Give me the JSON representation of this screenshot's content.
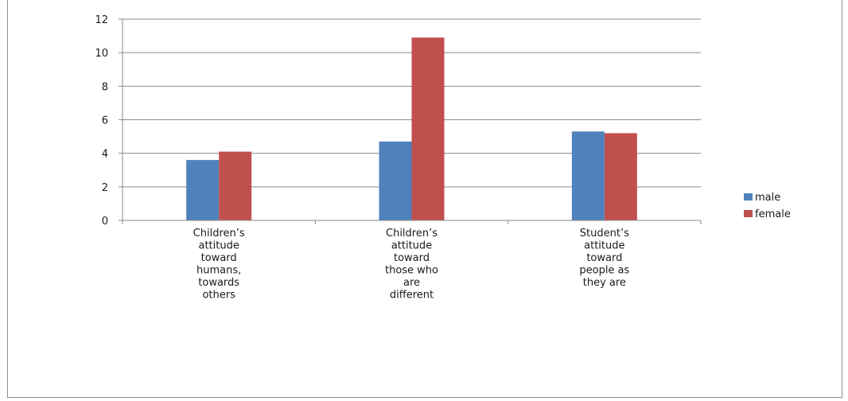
{
  "chart_data": {
    "type": "bar",
    "categories": [
      [
        "Children’s",
        "attitude",
        "toward",
        "humans,",
        "towards",
        "others"
      ],
      [
        "Children’s",
        "attitude",
        "toward",
        "those who",
        "are",
        "different"
      ],
      [
        "Student’s",
        "attitude",
        "toward",
        "people as",
        "they are"
      ]
    ],
    "series": [
      {
        "name": "male",
        "color": "#4f81bd",
        "values": [
          3.6,
          4.7,
          5.3
        ]
      },
      {
        "name": "female",
        "color": "#c0504d",
        "values": [
          4.1,
          10.9,
          5.2
        ]
      }
    ],
    "ylim": [
      0,
      12
    ],
    "yticks": [
      "0",
      "2",
      "4",
      "6",
      "8",
      "10",
      "12"
    ],
    "grid": true,
    "legend_position": "right"
  }
}
